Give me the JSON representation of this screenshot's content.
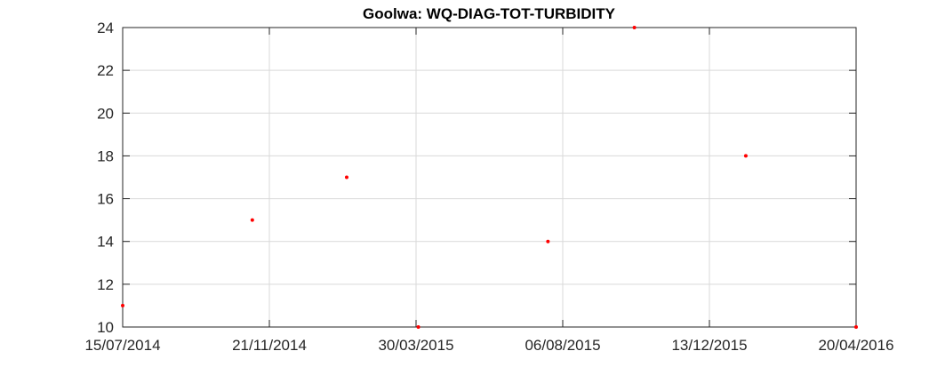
{
  "chart_data": {
    "type": "scatter",
    "title": "Goolwa: WQ-DIAG-TOT-TURBIDITY",
    "xlabel": "",
    "ylabel": "",
    "x_ticks": [
      "15/07/2014",
      "21/11/2014",
      "30/03/2015",
      "06/08/2015",
      "13/12/2015",
      "20/04/2016"
    ],
    "xlim": [
      "15/07/2014",
      "20/04/2016"
    ],
    "ylim": [
      10,
      24
    ],
    "y_ticks": [
      10,
      12,
      14,
      16,
      18,
      20,
      22,
      24
    ],
    "grid": true,
    "marker_color": "#ff0000",
    "points": [
      {
        "x": "15/07/2014",
        "y": 11
      },
      {
        "x": "06/11/2014",
        "y": 15
      },
      {
        "x": "28/01/2015",
        "y": 17
      },
      {
        "x": "01/04/2015",
        "y": 10
      },
      {
        "x": "24/07/2015",
        "y": 14
      },
      {
        "x": "08/10/2015",
        "y": 24
      },
      {
        "x": "14/01/2016",
        "y": 18
      },
      {
        "x": "20/04/2016",
        "y": 10
      }
    ]
  }
}
